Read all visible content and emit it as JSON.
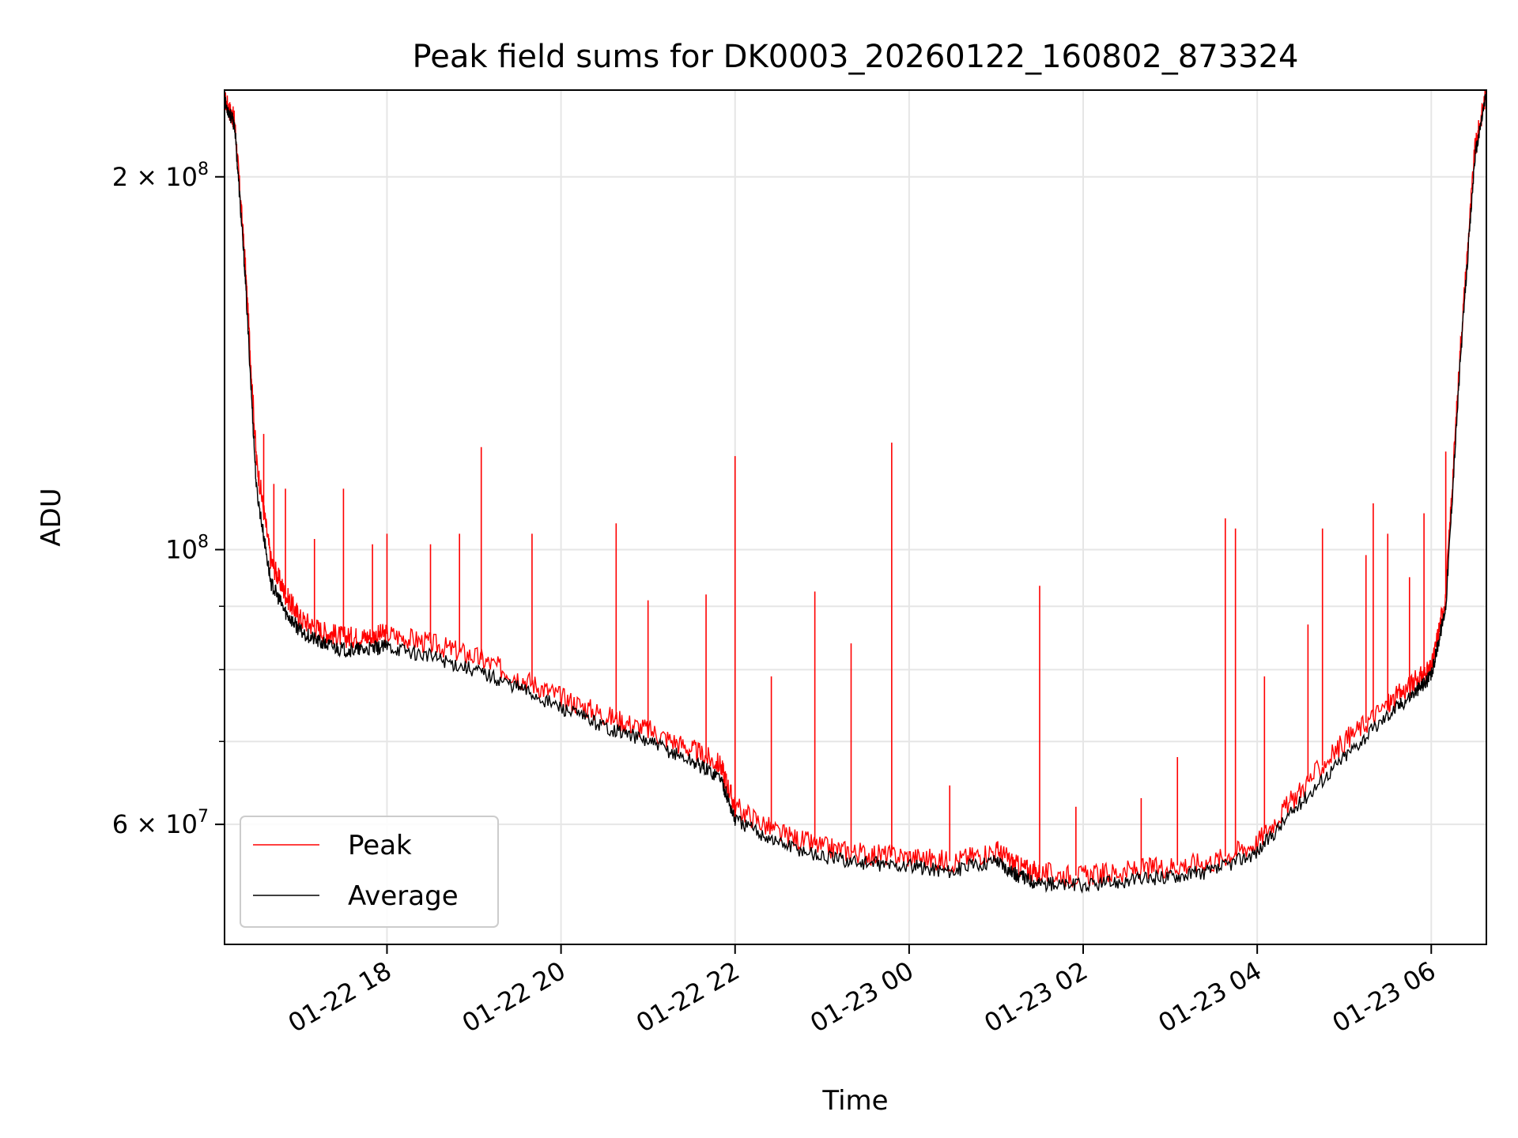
{
  "chart_data": {
    "type": "line",
    "title": "Peak field sums for DK0003_20260122_160802_873324",
    "xlabel": "Time",
    "ylabel": "ADU",
    "y_scale": "log",
    "ylim": [
      48000000,
      235000000
    ],
    "xlim": [
      "2026-01-22 16:08",
      "2026-01-23 06:38"
    ],
    "grid": true,
    "legend_position": "lower-left",
    "x_ticks": [
      {
        "value": "2026-01-22 18:00",
        "label": "01-22 18"
      },
      {
        "value": "2026-01-22 20:00",
        "label": "01-22 20"
      },
      {
        "value": "2026-01-22 22:00",
        "label": "01-22 22"
      },
      {
        "value": "2026-01-23 00:00",
        "label": "01-23 00"
      },
      {
        "value": "2026-01-23 02:00",
        "label": "01-23 02"
      },
      {
        "value": "2026-01-23 04:00",
        "label": "01-23 04"
      },
      {
        "value": "2026-01-23 06:00",
        "label": "01-23 06"
      }
    ],
    "y_major_ticks": [
      {
        "value": 60000000,
        "mantissa": "6",
        "times": "×",
        "base": "10",
        "exp": "7"
      },
      {
        "value": 100000000,
        "mantissa": "",
        "times": "",
        "base": "10",
        "exp": "8"
      },
      {
        "value": 200000000,
        "mantissa": "2",
        "times": "×",
        "base": "10",
        "exp": "8"
      }
    ],
    "y_minor_ticks": [
      70000000,
      80000000,
      90000000
    ],
    "series": [
      {
        "name": "Peak",
        "color": "#ff0000",
        "x": [
          "2026-01-22 16:08",
          "2026-01-22 16:15",
          "2026-01-22 16:22",
          "2026-01-22 16:30",
          "2026-01-22 16:40",
          "2026-01-22 16:50",
          "2026-01-22 17:00",
          "2026-01-22 17:15",
          "2026-01-22 17:30",
          "2026-01-22 17:45",
          "2026-01-22 18:00",
          "2026-01-22 18:30",
          "2026-01-22 19:00",
          "2026-01-22 19:30",
          "2026-01-22 20:00",
          "2026-01-22 20:30",
          "2026-01-22 21:00",
          "2026-01-22 21:30",
          "2026-01-22 21:50",
          "2026-01-22 22:00",
          "2026-01-22 22:30",
          "2026-01-22 23:00",
          "2026-01-22 23:30",
          "2026-01-23 00:00",
          "2026-01-23 00:30",
          "2026-01-23 01:00",
          "2026-01-23 01:15",
          "2026-01-23 01:30",
          "2026-01-23 02:00",
          "2026-01-23 02:30",
          "2026-01-23 03:00",
          "2026-01-23 03:30",
          "2026-01-23 04:00",
          "2026-01-23 04:30",
          "2026-01-23 05:00",
          "2026-01-23 05:30",
          "2026-01-23 05:50",
          "2026-01-23 06:00",
          "2026-01-23 06:10",
          "2026-01-23 06:20",
          "2026-01-23 06:30",
          "2026-01-23 06:38"
        ],
        "values": [
          231000000,
          222000000,
          172000000,
          118000000,
          98000000,
          92000000,
          88000000,
          86000000,
          85000000,
          85000000,
          85500000,
          84000000,
          82000000,
          79000000,
          76000000,
          73500000,
          71500000,
          69000000,
          67000000,
          62000000,
          59000000,
          57500000,
          56800000,
          56500000,
          56000000,
          57200000,
          55500000,
          54800000,
          54500000,
          55000000,
          55500000,
          56000000,
          58000000,
          64000000,
          70000000,
          75000000,
          78500000,
          80000000,
          92000000,
          145000000,
          210000000,
          235000000
        ],
        "spikes": [
          {
            "x": "2026-01-22 16:35",
            "y": 124000000
          },
          {
            "x": "2026-01-22 16:42",
            "y": 113000000
          },
          {
            "x": "2026-01-22 16:50",
            "y": 112000000
          },
          {
            "x": "2026-01-22 17:10",
            "y": 102000000
          },
          {
            "x": "2026-01-22 17:30",
            "y": 112000000
          },
          {
            "x": "2026-01-22 17:50",
            "y": 101000000
          },
          {
            "x": "2026-01-22 18:00",
            "y": 103000000
          },
          {
            "x": "2026-01-22 18:30",
            "y": 101000000
          },
          {
            "x": "2026-01-22 18:50",
            "y": 103000000
          },
          {
            "x": "2026-01-22 19:05",
            "y": 121000000
          },
          {
            "x": "2026-01-22 19:40",
            "y": 103000000
          },
          {
            "x": "2026-01-22 20:38",
            "y": 105000000
          },
          {
            "x": "2026-01-22 21:00",
            "y": 91000000
          },
          {
            "x": "2026-01-22 21:40",
            "y": 92000000
          },
          {
            "x": "2026-01-22 22:00",
            "y": 119000000
          },
          {
            "x": "2026-01-22 22:25",
            "y": 79000000
          },
          {
            "x": "2026-01-22 22:55",
            "y": 92500000
          },
          {
            "x": "2026-01-22 23:20",
            "y": 84000000
          },
          {
            "x": "2026-01-22 23:48",
            "y": 122000000
          },
          {
            "x": "2026-01-23 00:28",
            "y": 64500000
          },
          {
            "x": "2026-01-23 01:30",
            "y": 93500000
          },
          {
            "x": "2026-01-23 01:55",
            "y": 62000000
          },
          {
            "x": "2026-01-23 02:40",
            "y": 63000000
          },
          {
            "x": "2026-01-23 03:05",
            "y": 68000000
          },
          {
            "x": "2026-01-23 03:38",
            "y": 106000000
          },
          {
            "x": "2026-01-23 03:45",
            "y": 104000000
          },
          {
            "x": "2026-01-23 04:05",
            "y": 79000000
          },
          {
            "x": "2026-01-23 04:35",
            "y": 87000000
          },
          {
            "x": "2026-01-23 04:45",
            "y": 104000000
          },
          {
            "x": "2026-01-23 05:15",
            "y": 99000000
          },
          {
            "x": "2026-01-23 05:20",
            "y": 109000000
          },
          {
            "x": "2026-01-23 05:30",
            "y": 103000000
          },
          {
            "x": "2026-01-23 05:45",
            "y": 95000000
          },
          {
            "x": "2026-01-23 05:55",
            "y": 107000000
          },
          {
            "x": "2026-01-23 06:10",
            "y": 120000000
          }
        ]
      },
      {
        "name": "Average",
        "color": "#000000",
        "x": [
          "2026-01-22 16:08",
          "2026-01-22 16:15",
          "2026-01-22 16:22",
          "2026-01-22 16:30",
          "2026-01-22 16:40",
          "2026-01-22 16:50",
          "2026-01-22 17:00",
          "2026-01-22 17:15",
          "2026-01-22 17:30",
          "2026-01-22 17:45",
          "2026-01-22 18:00",
          "2026-01-22 18:30",
          "2026-01-22 19:00",
          "2026-01-22 19:30",
          "2026-01-22 20:00",
          "2026-01-22 20:30",
          "2026-01-22 21:00",
          "2026-01-22 21:30",
          "2026-01-22 21:50",
          "2026-01-22 22:00",
          "2026-01-22 22:30",
          "2026-01-22 23:00",
          "2026-01-22 23:30",
          "2026-01-23 00:00",
          "2026-01-23 00:30",
          "2026-01-23 01:00",
          "2026-01-23 01:15",
          "2026-01-23 01:30",
          "2026-01-23 02:00",
          "2026-01-23 02:30",
          "2026-01-23 03:00",
          "2026-01-23 03:30",
          "2026-01-23 04:00",
          "2026-01-23 04:30",
          "2026-01-23 05:00",
          "2026-01-23 05:30",
          "2026-01-23 05:50",
          "2026-01-23 06:00",
          "2026-01-23 06:10",
          "2026-01-23 06:20",
          "2026-01-23 06:30",
          "2026-01-23 06:38"
        ],
        "values": [
          230000000,
          220000000,
          168000000,
          112000000,
          94000000,
          89000000,
          86000000,
          84000000,
          83000000,
          83000000,
          83500000,
          82000000,
          80000000,
          77500000,
          74500000,
          72000000,
          70000000,
          67500000,
          65500000,
          60500000,
          58000000,
          56500000,
          55800000,
          55500000,
          55000000,
          56200000,
          54500000,
          53800000,
          53500000,
          54000000,
          54500000,
          55000000,
          57000000,
          62500000,
          68000000,
          73500000,
          77000000,
          79000000,
          90000000,
          142000000,
          207000000,
          234000000
        ]
      }
    ],
    "legend": [
      "Peak",
      "Average"
    ]
  }
}
